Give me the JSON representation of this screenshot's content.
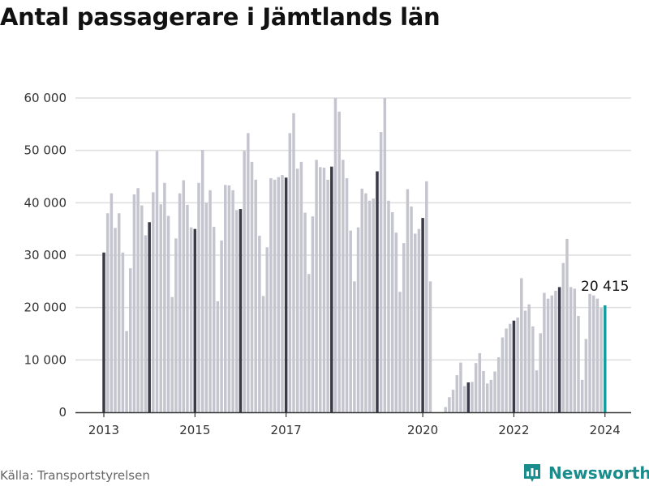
{
  "title": "Antal passagerare i Jämtlands län",
  "source": "Källa: Transportstyrelsen",
  "brand": {
    "name": "Newsworthy",
    "icon": "bar-chart-logo-icon",
    "color": "#1a8c8c"
  },
  "colors": {
    "bar": "#c5c5cf",
    "january_bar": "#3a3a48",
    "highlight_bar": "#1a9c9c",
    "grid": "#dddddd"
  },
  "chart_data": {
    "type": "bar",
    "title": "Antal passagerare i Jämtlands län",
    "xlabel": "",
    "ylabel": "",
    "ylim": [
      0,
      60000
    ],
    "grid": true,
    "y_ticks": [
      "0",
      "10 000",
      "20 000",
      "30 000",
      "40 000",
      "50 000",
      "60 000"
    ],
    "y_tick_values": [
      0,
      10000,
      20000,
      30000,
      40000,
      50000,
      60000
    ],
    "x_ticks": [
      "2013",
      "2015",
      "2017",
      "2020",
      "2022",
      "2024"
    ],
    "start": "2013-01",
    "end": "2024-01",
    "values": [
      30500,
      38000,
      41800,
      35200,
      38000,
      30500,
      15500,
      27500,
      41600,
      42800,
      39500,
      33800,
      36300,
      42000,
      49900,
      39700,
      43800,
      37500,
      22000,
      33200,
      41800,
      44300,
      39600,
      35300,
      35000,
      43800,
      50100,
      40000,
      42400,
      35400,
      21200,
      32800,
      43400,
      43300,
      42400,
      38600,
      38800,
      49900,
      53300,
      47800,
      44400,
      33700,
      22200,
      31500,
      44700,
      44400,
      44900,
      45300,
      44800,
      53300,
      57100,
      46500,
      47800,
      38100,
      26400,
      37400,
      48200,
      46800,
      46700,
      44400,
      46900,
      60000,
      57400,
      48200,
      44700,
      34700,
      25000,
      35300,
      42700,
      41800,
      40400,
      40800,
      46000,
      53500,
      60000,
      40400,
      38200,
      34300,
      23000,
      32300,
      42600,
      39300,
      34100,
      35000,
      37100,
      44100,
      25000,
      0,
      0,
      0,
      1000,
      2900,
      4300,
      7100,
      9500,
      5000,
      5700,
      5800,
      9400,
      11300,
      7900,
      5500,
      6200,
      7800,
      10500,
      14300,
      16000,
      16900,
      17500,
      18100,
      25600,
      19400,
      20600,
      16400,
      8000,
      15100,
      22800,
      21700,
      22300,
      23200,
      23900,
      28500,
      33100,
      23900,
      23600,
      18400,
      6200,
      14000,
      22600,
      22300,
      21700,
      19900,
      20415
    ],
    "annotation": {
      "label": "20 415",
      "value": 20415,
      "date": "2024-01"
    }
  }
}
